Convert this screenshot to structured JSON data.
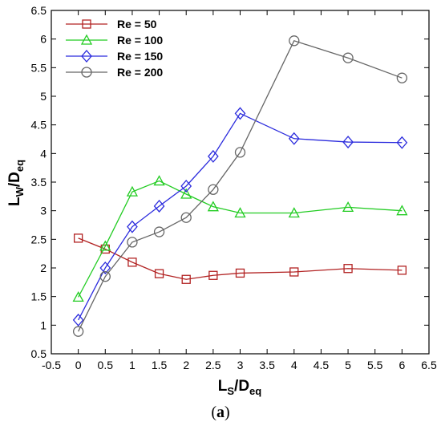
{
  "caption": {
    "open": "(",
    "letter": "a",
    "close": ")"
  },
  "chart_data": {
    "type": "line",
    "x_label": {
      "main": "L",
      "sub1": "S",
      "mid": "/D",
      "sub2": "eq"
    },
    "y_label": {
      "main": "L",
      "sub1": "W",
      "mid": "/D",
      "sub2": "eq"
    },
    "xlim": [
      -0.5,
      6.5
    ],
    "ylim": [
      0.5,
      6.5
    ],
    "x_ticks": [
      "-0.5",
      "0",
      "0.5",
      "1",
      "1.5",
      "2",
      "2.5",
      "3",
      "3.5",
      "4",
      "4.5",
      "5",
      "5.5",
      "6",
      "6.5"
    ],
    "y_ticks": [
      "0.5",
      "1",
      "1.5",
      "2",
      "2.5",
      "3",
      "3.5",
      "4",
      "4.5",
      "5",
      "5.5",
      "6",
      "6.5"
    ],
    "grid": false,
    "legend_position": "top-left",
    "series": [
      {
        "name": "Re = 50",
        "color": "#b22222",
        "marker": "square",
        "x": [
          0,
          0.5,
          1,
          1.5,
          2,
          2.5,
          3,
          4,
          5,
          6
        ],
        "y": [
          2.52,
          2.33,
          2.1,
          1.9,
          1.8,
          1.87,
          1.91,
          1.93,
          1.99,
          1.96
        ]
      },
      {
        "name": "Re = 100",
        "color": "#22cc22",
        "marker": "triangle",
        "x": [
          0,
          0.5,
          1,
          1.5,
          2,
          2.5,
          3,
          4,
          5,
          6
        ],
        "y": [
          1.49,
          2.38,
          3.33,
          3.52,
          3.29,
          3.07,
          2.96,
          2.96,
          3.06,
          3.0
        ]
      },
      {
        "name": "Re = 150",
        "color": "#2b2bdd",
        "marker": "diamond",
        "x": [
          0,
          0.5,
          1,
          1.5,
          2,
          2.5,
          3,
          4,
          5,
          6
        ],
        "y": [
          1.09,
          2.0,
          2.72,
          3.08,
          3.43,
          3.95,
          4.7,
          4.26,
          4.2,
          4.19
        ]
      },
      {
        "name": "Re = 200",
        "color": "#666666",
        "marker": "circle",
        "x": [
          0,
          0.5,
          1,
          1.5,
          2,
          2.5,
          3,
          4,
          5,
          6
        ],
        "y": [
          0.89,
          1.85,
          2.45,
          2.63,
          2.88,
          3.37,
          4.02,
          5.97,
          5.67,
          5.32
        ]
      }
    ]
  }
}
